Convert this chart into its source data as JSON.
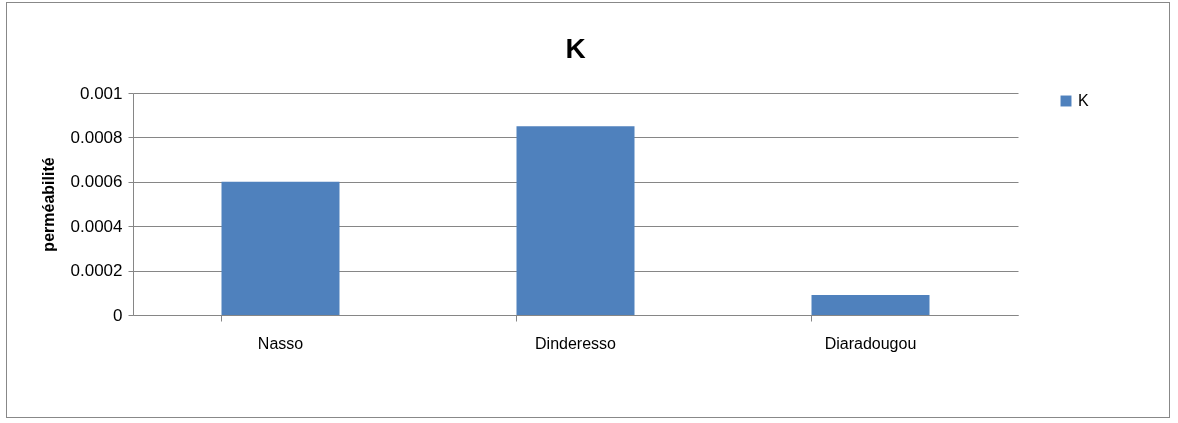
{
  "chart_data": {
    "type": "bar",
    "title": "K",
    "ylabel": "perméabilité",
    "categories": [
      "Nasso",
      "Dinderesso",
      "Diaradougou"
    ],
    "series": [
      {
        "name": "K",
        "color": "#4f81bd",
        "values": [
          0.0006,
          0.00085,
          9e-05
        ]
      }
    ],
    "ylim": [
      0,
      0.001
    ],
    "yticks": [
      0,
      0.0002,
      0.0004,
      0.0006,
      0.0008,
      0.001
    ],
    "grid": "y",
    "legend": "right"
  }
}
